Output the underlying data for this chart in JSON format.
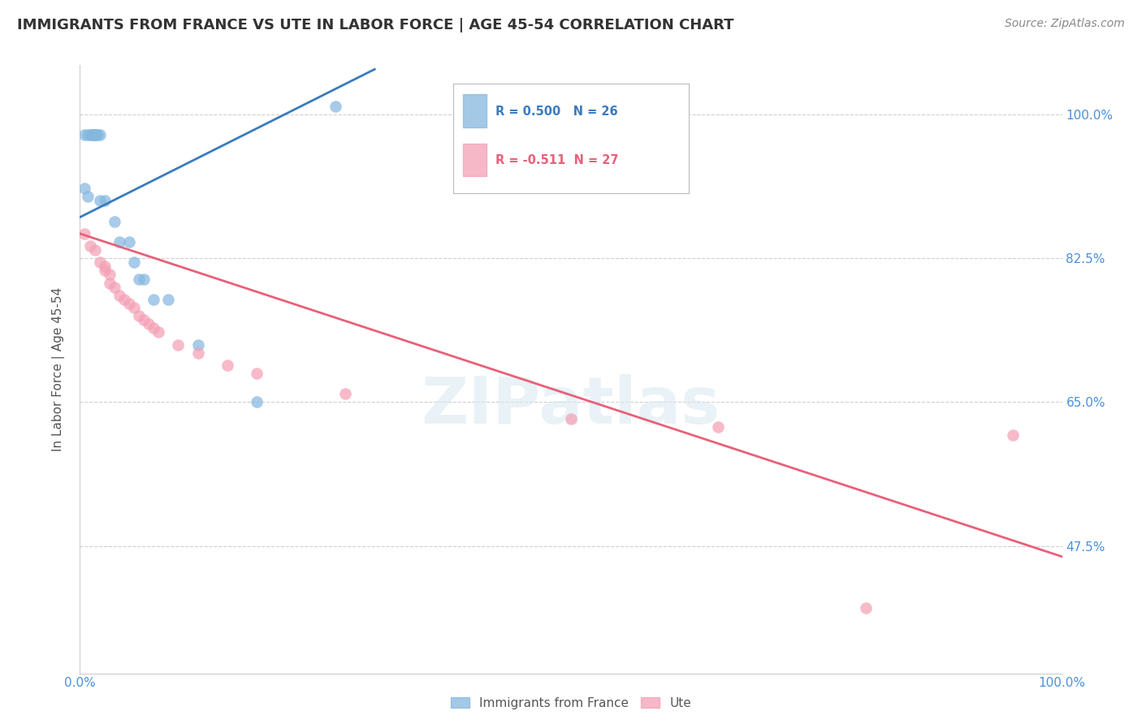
{
  "title": "IMMIGRANTS FROM FRANCE VS UTE IN LABOR FORCE | AGE 45-54 CORRELATION CHART",
  "source": "Source: ZipAtlas.com",
  "ylabel": "In Labor Force | Age 45-54",
  "xlim": [
    0.0,
    1.0
  ],
  "ylim": [
    0.32,
    1.06
  ],
  "yticks": [
    0.475,
    0.65,
    0.825,
    1.0
  ],
  "ytick_labels": [
    "47.5%",
    "65.0%",
    "82.5%",
    "100.0%"
  ],
  "xtick_labels": [
    "0.0%",
    "100.0%"
  ],
  "xticks": [
    0.0,
    1.0
  ],
  "blue_color": "#85b8e0",
  "pink_color": "#f4a0b5",
  "blue_line_color": "#3a7bbf",
  "pink_line_color": "#e8607a",
  "blue_scatter": [
    [
      0.005,
      0.975
    ],
    [
      0.008,
      0.975
    ],
    [
      0.01,
      0.975
    ],
    [
      0.012,
      0.975
    ],
    [
      0.013,
      0.975
    ],
    [
      0.014,
      0.975
    ],
    [
      0.015,
      0.975
    ],
    [
      0.015,
      0.975
    ],
    [
      0.015,
      0.975
    ],
    [
      0.018,
      0.975
    ],
    [
      0.02,
      0.975
    ],
    [
      0.005,
      0.91
    ],
    [
      0.008,
      0.9
    ],
    [
      0.02,
      0.895
    ],
    [
      0.025,
      0.895
    ],
    [
      0.035,
      0.87
    ],
    [
      0.04,
      0.845
    ],
    [
      0.05,
      0.845
    ],
    [
      0.055,
      0.82
    ],
    [
      0.06,
      0.8
    ],
    [
      0.065,
      0.8
    ],
    [
      0.075,
      0.775
    ],
    [
      0.09,
      0.775
    ],
    [
      0.12,
      0.72
    ],
    [
      0.18,
      0.65
    ],
    [
      0.26,
      1.01
    ]
  ],
  "pink_scatter": [
    [
      0.005,
      0.855
    ],
    [
      0.01,
      0.84
    ],
    [
      0.015,
      0.835
    ],
    [
      0.02,
      0.82
    ],
    [
      0.025,
      0.815
    ],
    [
      0.025,
      0.81
    ],
    [
      0.03,
      0.805
    ],
    [
      0.03,
      0.795
    ],
    [
      0.035,
      0.79
    ],
    [
      0.04,
      0.78
    ],
    [
      0.045,
      0.775
    ],
    [
      0.05,
      0.77
    ],
    [
      0.055,
      0.765
    ],
    [
      0.06,
      0.755
    ],
    [
      0.065,
      0.75
    ],
    [
      0.07,
      0.745
    ],
    [
      0.075,
      0.74
    ],
    [
      0.08,
      0.735
    ],
    [
      0.1,
      0.72
    ],
    [
      0.12,
      0.71
    ],
    [
      0.15,
      0.695
    ],
    [
      0.18,
      0.685
    ],
    [
      0.27,
      0.66
    ],
    [
      0.5,
      0.63
    ],
    [
      0.65,
      0.62
    ],
    [
      0.8,
      0.4
    ],
    [
      0.95,
      0.61
    ]
  ],
  "blue_trendline_x": [
    0.0,
    0.3
  ],
  "blue_trendline_y": [
    0.875,
    1.055
  ],
  "pink_trendline_x": [
    0.0,
    1.0
  ],
  "pink_trendline_y": [
    0.855,
    0.462
  ],
  "watermark": "ZIPatlas",
  "background_color": "#ffffff",
  "grid_color": "#d0d0d0"
}
